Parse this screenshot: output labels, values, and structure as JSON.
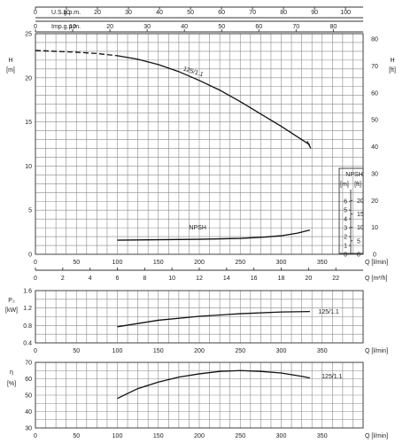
{
  "chart_data": [
    {
      "type": "line",
      "title": "",
      "xlabel": "Q [l/min]",
      "ylabel": "H [m]",
      "ylabel_right": "H [ft]",
      "xlim": [
        0,
        400
      ],
      "ylim": [
        0,
        25
      ],
      "ylim_right": [
        0,
        82
      ],
      "grid": true,
      "x_ticks": [
        "0",
        "50",
        "100",
        "150",
        "200",
        "250",
        "300",
        "350"
      ],
      "y_ticks": [
        "0",
        "5",
        "10",
        "15",
        "20",
        "25"
      ],
      "y_right_ticks": [
        "0",
        "10",
        "20",
        "30",
        "40",
        "50",
        "60",
        "70",
        "80"
      ],
      "top_axes": [
        {
          "label": "U.S.g.p.m.",
          "max": 105.67,
          "ticks": [
            "0",
            "10",
            "20",
            "30",
            "40",
            "50",
            "60",
            "70",
            "80",
            "90",
            "100"
          ]
        },
        {
          "label": "Imp.g.p.m.",
          "max": 88.0,
          "ticks": [
            "0",
            "10",
            "20",
            "30",
            "40",
            "50",
            "60",
            "70",
            "80"
          ]
        }
      ],
      "bottom_axis2": {
        "label": "Q [m³/h]",
        "max": 24,
        "ticks": [
          "0",
          "2",
          "4",
          "6",
          "8",
          "10",
          "12",
          "14",
          "16",
          "18",
          "20",
          "22"
        ]
      },
      "npsh_inset": {
        "label": "NPSH",
        "units": [
          "[m]",
          "[ft]"
        ],
        "m_ticks": [
          "0",
          "1",
          "2",
          "3",
          "4",
          "5",
          "6"
        ],
        "ft_ticks": [
          "0",
          "5",
          "10",
          "15",
          "20"
        ]
      },
      "series": [
        {
          "name": "125/1.1",
          "x": [
            0,
            25,
            50,
            75,
            100,
            125,
            150,
            175,
            200,
            225,
            250,
            275,
            300,
            325,
            335
          ],
          "y": [
            23.1,
            23.0,
            22.9,
            22.75,
            22.5,
            22.1,
            21.5,
            20.7,
            19.7,
            18.6,
            17.3,
            15.9,
            14.5,
            13.0,
            12.4
          ],
          "dashed_until": 100
        },
        {
          "name": "NPSH",
          "x": [
            100,
            150,
            200,
            250,
            280,
            300,
            320,
            335
          ],
          "y": [
            1.6,
            1.65,
            1.7,
            1.8,
            1.95,
            2.1,
            2.4,
            2.75
          ]
        }
      ]
    },
    {
      "type": "line",
      "title": "",
      "xlabel": "Q [l/min]",
      "ylabel": "P2 [kW]",
      "xlim": [
        0,
        400
      ],
      "ylim": [
        0.4,
        1.6
      ],
      "grid": true,
      "x_ticks": [
        "0",
        "50",
        "100",
        "150",
        "200",
        "250",
        "300",
        "350"
      ],
      "y_ticks": [
        "0.4",
        "0.8",
        "1.2",
        "1.6"
      ],
      "series": [
        {
          "name": "125/1.1",
          "x": [
            100,
            150,
            200,
            250,
            300,
            335
          ],
          "y": [
            0.77,
            0.92,
            1.01,
            1.07,
            1.11,
            1.12
          ]
        }
      ]
    },
    {
      "type": "line",
      "title": "",
      "xlabel": "Q [l/min]",
      "ylabel": "η [%]",
      "xlim": [
        0,
        400
      ],
      "ylim": [
        30,
        70
      ],
      "grid": true,
      "x_ticks": [
        "0",
        "50",
        "100",
        "150",
        "200",
        "250",
        "300",
        "350"
      ],
      "y_ticks": [
        "30",
        "40",
        "50",
        "60",
        "70"
      ],
      "series": [
        {
          "name": "125/1.1",
          "x": [
            100,
            125,
            150,
            175,
            200,
            225,
            250,
            275,
            300,
            325,
            335
          ],
          "y": [
            48,
            54,
            58,
            61,
            63,
            64.5,
            65,
            64.5,
            63.5,
            61.5,
            60.5
          ]
        }
      ]
    }
  ],
  "labels": {
    "usgpm": "U.S.g.p.m.",
    "impgpm": "Imp.g.p.m.",
    "h_main": "H",
    "h_unit_m": "[m]",
    "h_unit_ft": "[ft]",
    "q_lmin": "Q  [l/min]",
    "q_m3h": "Q  [m³/h]",
    "p2": "P₂",
    "p2_unit": "[kW]",
    "eta": "η",
    "eta_unit": "[%]",
    "curve_name": "125/1.1",
    "npsh": "NPSH"
  }
}
